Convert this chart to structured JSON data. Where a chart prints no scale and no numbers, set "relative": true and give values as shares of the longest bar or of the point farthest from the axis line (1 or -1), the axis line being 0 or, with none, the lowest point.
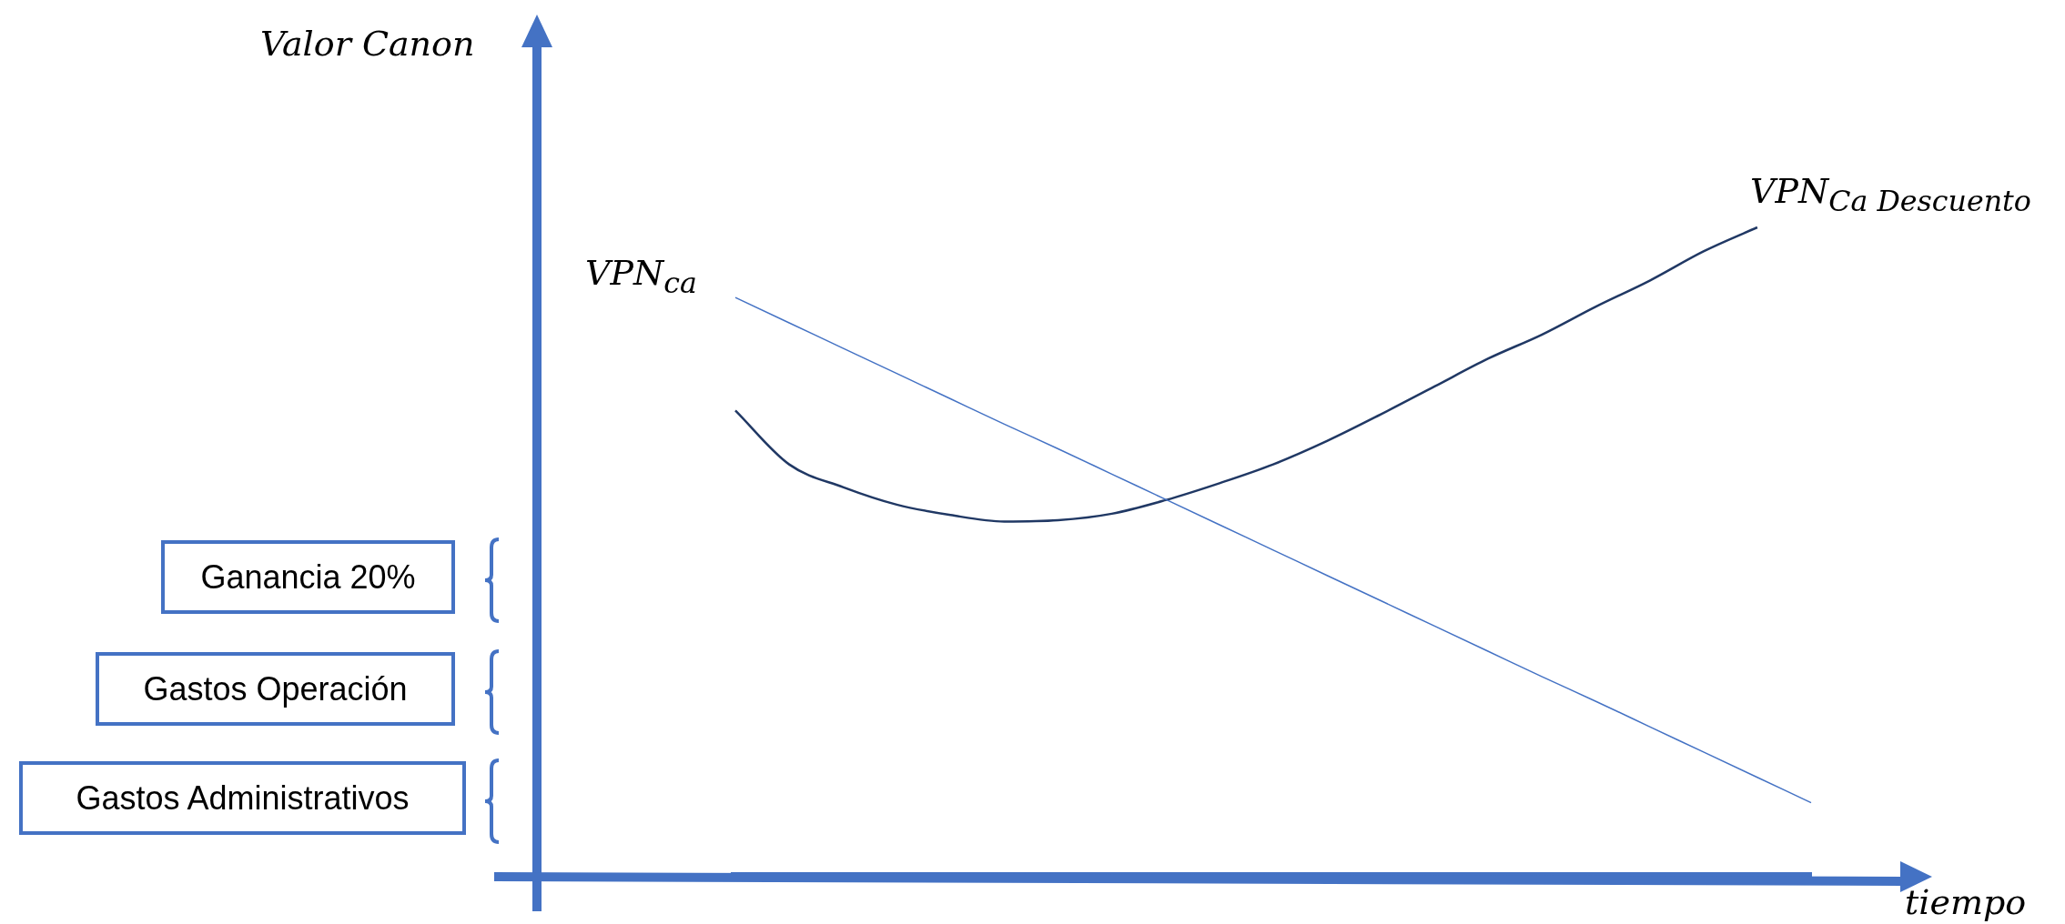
{
  "chart_data": {
    "type": "line",
    "relative": true,
    "xlabel": "tiempo",
    "categories": [
      null,
      null,
      null,
      null,
      null,
      null,
      null,
      null,
      null,
      null,
      null,
      null,
      null,
      null,
      null,
      null,
      null,
      null,
      null,
      null,
      null
    ],
    "series": [
      {
        "name": "VPN$_{ca}$",
        "color": "#4472c4",
        "values": [
          0.892,
          0.853,
          0.814,
          0.775,
          0.736,
          0.697,
          0.659,
          0.62,
          0.581,
          0.542,
          0.503,
          0.464,
          0.425,
          0.386,
          0.347,
          0.308,
          0.27,
          0.231,
          0.192,
          0.153,
          0.114
        ]
      },
      {
        "name": "VPN$_{Ca Descuento}$",
        "color": "#203864",
        "values": [
          0.718,
          0.635,
          0.6,
          0.573,
          0.557,
          0.547,
          0.549,
          0.559,
          0.58,
          0.606,
          0.635,
          0.671,
          0.712,
          0.755,
          0.798,
          0.835,
          0.878,
          0.918,
          0.963,
          1,
          null
        ]
      }
    ],
    "annotations": [
      "Valor Canon",
      "Ganancia 20%",
      "Gastos Operación",
      "Gastos Administrativos"
    ]
  }
}
